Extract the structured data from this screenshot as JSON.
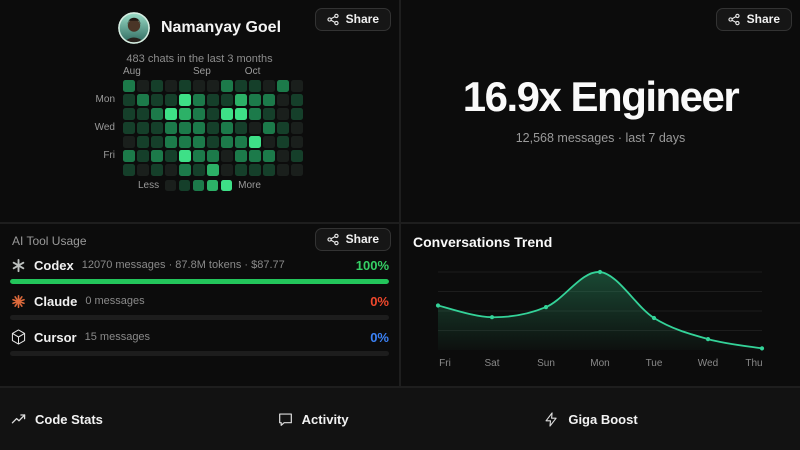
{
  "profile": {
    "name": "Namanyay Goel",
    "subtitle": "483 chats in the last 3 months",
    "share_label": "Share"
  },
  "heatmap": {
    "months": [
      {
        "label": "Aug",
        "col": 0
      },
      {
        "label": "Sep",
        "col": 5
      },
      {
        "label": "Oct",
        "col": 8.7
      }
    ],
    "day_labels": [
      {
        "label": "Mon",
        "row": 1
      },
      {
        "label": "Wed",
        "row": 3
      },
      {
        "label": "Fri",
        "row": 5
      }
    ],
    "legend": {
      "less": "Less",
      "more": "More"
    },
    "levels": [
      "#1a1f1c",
      "#153f2a",
      "#1c7a4a",
      "#2cb167",
      "#3ee087"
    ],
    "grid": [
      [
        2,
        0,
        1,
        0,
        1,
        0,
        0,
        2,
        1,
        1,
        0,
        2,
        0
      ],
      [
        1,
        2,
        1,
        1,
        4,
        2,
        1,
        1,
        3,
        2,
        2,
        0,
        1
      ],
      [
        1,
        1,
        2,
        4,
        3,
        2,
        1,
        4,
        4,
        2,
        1,
        0,
        1
      ],
      [
        1,
        1,
        1,
        2,
        2,
        2,
        1,
        2,
        1,
        0,
        2,
        1,
        0
      ],
      [
        0,
        1,
        1,
        2,
        2,
        2,
        1,
        2,
        2,
        4,
        0,
        1,
        0
      ],
      [
        2,
        1,
        2,
        1,
        4,
        2,
        2,
        0,
        2,
        2,
        2,
        0,
        1
      ],
      [
        1,
        0,
        1,
        0,
        2,
        1,
        3,
        0,
        1,
        1,
        1,
        0,
        0
      ]
    ]
  },
  "headline": {
    "title": "16.9x Engineer",
    "subtitle": "12,568 messages · last 7 days",
    "share_label": "Share"
  },
  "tool_usage": {
    "title": "AI Tool Usage",
    "share_label": "Share",
    "tools": [
      {
        "name": "Codex",
        "details": "12070 messages · 87.8M tokens · $87.77",
        "percent": "100%",
        "value": 100,
        "color": "#35d065",
        "bar_color": "#23c55b",
        "icon": "openai-icon"
      },
      {
        "name": "Claude",
        "details": "0 messages",
        "percent": "0%",
        "value": 0,
        "color": "#f0482c",
        "bar_color": "#23c55b",
        "icon": "claude-icon"
      },
      {
        "name": "Cursor",
        "details": "15 messages",
        "percent": "0%",
        "value": 0,
        "color": "#3b82f6",
        "bar_color": "#23c55b",
        "icon": "cursor-icon"
      }
    ]
  },
  "chart_data": {
    "type": "area",
    "title": "Conversations Trend",
    "x": [
      "Fri",
      "Sat",
      "Sun",
      "Mon",
      "Tue",
      "Wed",
      "Thu"
    ],
    "values": [
      57,
      42,
      55,
      100,
      41,
      14,
      2
    ],
    "ylim": [
      0,
      100
    ],
    "xlabel": "",
    "ylabel": "",
    "grid": true,
    "legend_position": "none",
    "line_color": "#34d399",
    "fill_color": "#2d9c6a",
    "gridline_color": "#1d1d1d",
    "label_color": "#8a8a8a"
  },
  "footer": {
    "items": [
      {
        "label": "Code Stats",
        "icon": "trending-up-icon"
      },
      {
        "label": "Activity",
        "icon": "message-icon"
      },
      {
        "label": "Giga Boost",
        "icon": "zap-icon"
      }
    ]
  }
}
